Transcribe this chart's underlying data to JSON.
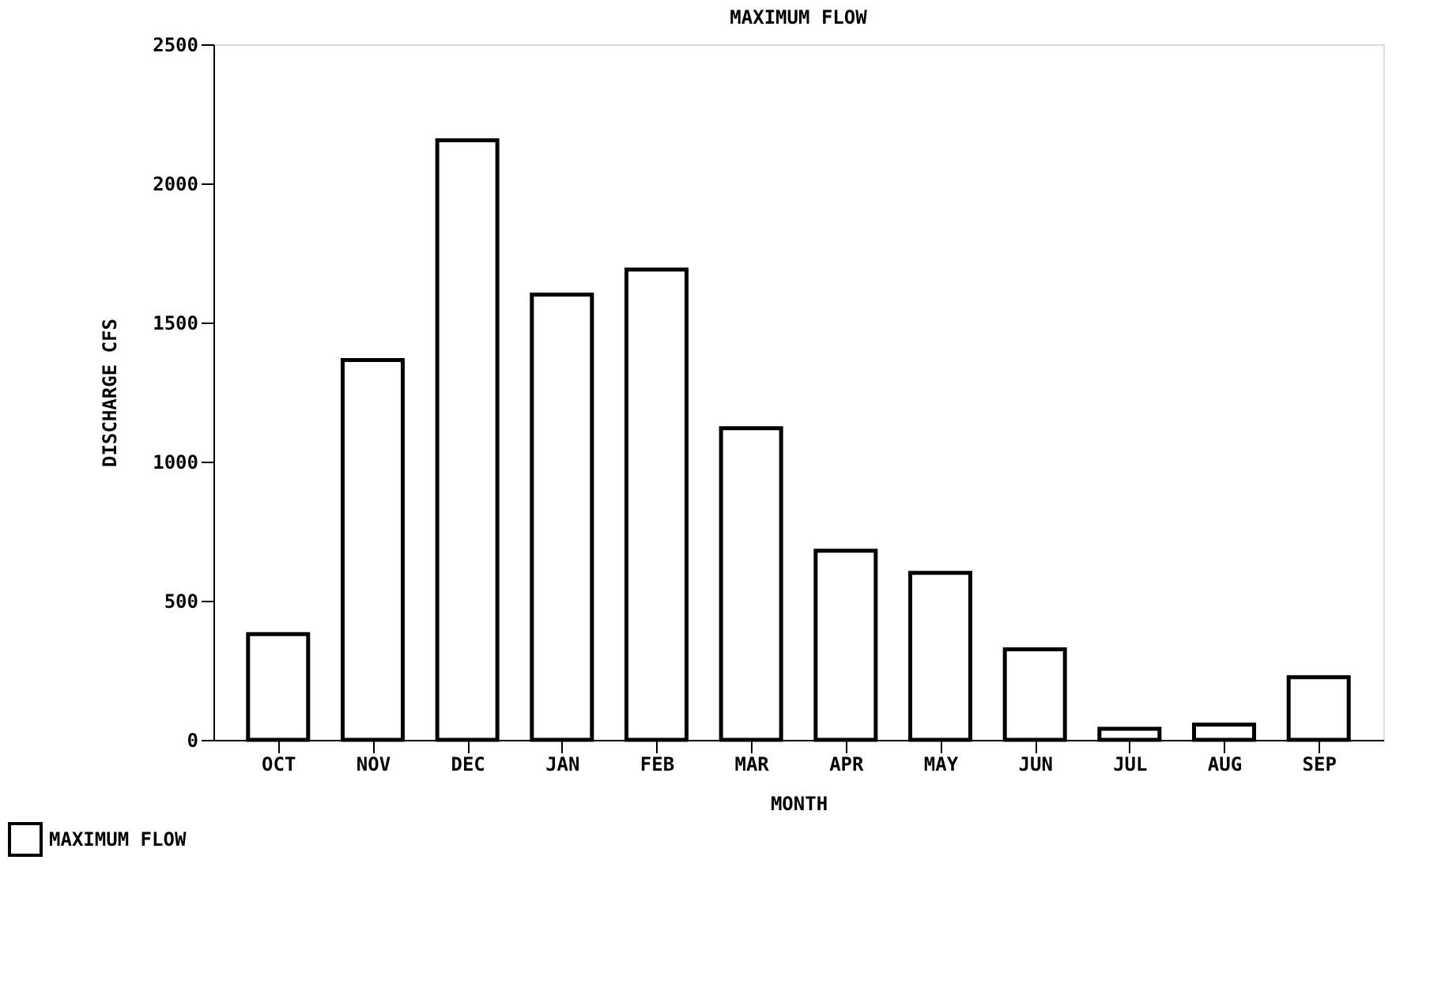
{
  "chart_data": {
    "type": "bar",
    "title": "MAXIMUM FLOW",
    "xlabel": "MONTH",
    "ylabel": "DISCHARGE CFS",
    "categories": [
      "OCT",
      "NOV",
      "DEC",
      "JAN",
      "FEB",
      "MAR",
      "APR",
      "MAY",
      "JUN",
      "JUL",
      "AUG",
      "SEP"
    ],
    "series": [
      {
        "name": "MAXIMUM FLOW",
        "color": "#ffffff",
        "values": [
          380,
          1365,
          2155,
          1600,
          1690,
          1120,
          680,
          600,
          325,
          40,
          55,
          225
        ]
      }
    ],
    "ylim": [
      0,
      2500
    ],
    "yticks": [
      0,
      500,
      1000,
      1500,
      2000,
      2500
    ],
    "grid": false,
    "legend": "bottom left"
  }
}
